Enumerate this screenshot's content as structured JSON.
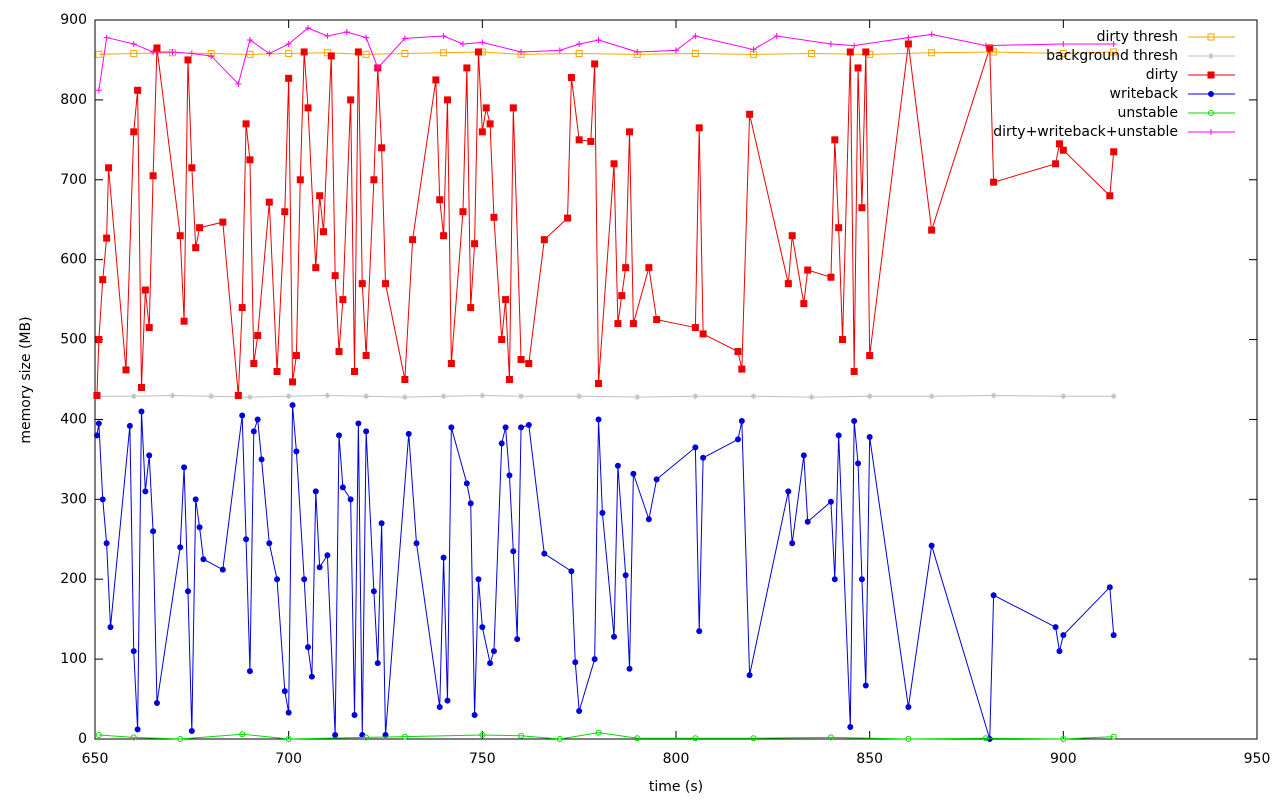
{
  "chart_data": {
    "type": "line",
    "xlabel": "time (s)",
    "ylabel": "memory size (MB)",
    "xlim": [
      650,
      950
    ],
    "xticks": [
      650,
      700,
      750,
      800,
      850,
      900,
      950
    ],
    "ylim": [
      0,
      900
    ],
    "yticks": [
      0,
      100,
      200,
      300,
      400,
      500,
      600,
      700,
      800,
      900
    ],
    "legend": "upper right",
    "series": [
      {
        "name": "dirty thresh",
        "color": "#ffa500",
        "marker": "open-square",
        "x": [
          651,
          660,
          670,
          680,
          690,
          700,
          710,
          720,
          730,
          740,
          750,
          760,
          775,
          790,
          805,
          820,
          835,
          850,
          866,
          882,
          900,
          913
        ],
        "values": [
          857,
          858,
          859,
          858,
          857,
          858,
          859,
          857,
          858,
          859,
          860,
          857,
          858,
          857,
          858,
          857,
          858,
          857,
          859,
          860,
          858,
          860
        ]
      },
      {
        "name": "background thresh",
        "color": "#c0c0c0",
        "marker": "star",
        "x": [
          651,
          660,
          670,
          680,
          690,
          700,
          710,
          720,
          730,
          740,
          750,
          760,
          775,
          790,
          805,
          820,
          835,
          850,
          866,
          882,
          900,
          913
        ],
        "values": [
          429,
          429,
          430,
          429,
          428,
          429,
          430,
          429,
          428,
          429,
          430,
          429,
          429,
          428,
          429,
          429,
          428,
          429,
          429,
          430,
          429,
          429
        ]
      },
      {
        "name": "dirty",
        "color": "#ee0000",
        "marker": "square",
        "x": [
          650.5,
          651,
          652,
          653,
          653.5,
          658,
          660,
          661,
          662,
          663,
          664,
          665,
          666,
          672,
          673,
          674,
          675,
          676,
          677,
          683,
          687,
          688,
          689,
          690,
          691,
          692,
          695,
          697,
          699,
          700,
          701,
          702,
          703,
          704,
          705,
          707,
          708,
          709,
          711,
          712,
          713,
          714,
          716,
          717,
          718,
          719,
          720,
          722,
          723,
          724,
          725,
          730,
          732,
          738,
          739,
          740,
          741,
          742,
          745,
          746,
          747,
          748,
          749,
          750,
          751,
          752,
          753,
          755,
          756,
          757,
          758,
          760,
          762,
          766,
          772,
          773,
          775,
          778,
          779,
          780,
          784,
          785,
          786,
          787,
          788,
          789,
          793,
          795,
          805,
          806,
          807,
          816,
          817,
          819,
          829,
          830,
          833,
          834,
          840,
          841,
          842,
          843,
          845,
          846,
          847,
          848,
          849,
          850,
          860,
          866,
          881,
          882,
          898,
          899,
          900,
          912,
          913
        ],
        "values": [
          430,
          500,
          575,
          627,
          715,
          462,
          760,
          812,
          440,
          562,
          515,
          705,
          865,
          630,
          523,
          850,
          715,
          615,
          640,
          647,
          430,
          540,
          770,
          725,
          470,
          505,
          672,
          460,
          660,
          827,
          447,
          480,
          700,
          860,
          790,
          590,
          680,
          635,
          855,
          580,
          485,
          550,
          800,
          460,
          860,
          570,
          480,
          700,
          840,
          740,
          570,
          450,
          625,
          825,
          675,
          630,
          800,
          470,
          660,
          840,
          540,
          620,
          860,
          760,
          790,
          770,
          653,
          500,
          550,
          450,
          790,
          475,
          470,
          625,
          652,
          828,
          750,
          748,
          845,
          445,
          720,
          520,
          555,
          590,
          760,
          520,
          590,
          525,
          515,
          765,
          507,
          485,
          463,
          782,
          570,
          630,
          545,
          587,
          578,
          750,
          640,
          500,
          860,
          460,
          840,
          665,
          860,
          480,
          870,
          637,
          865,
          697,
          720,
          745,
          737,
          680,
          735
        ]
      },
      {
        "name": "writeback",
        "color": "#0000dd",
        "marker": "circle",
        "x": [
          650.5,
          651,
          652,
          653,
          654,
          659,
          660,
          661,
          662,
          663,
          664,
          665,
          666,
          672,
          673,
          674,
          675,
          676,
          677,
          678,
          683,
          688,
          689,
          690,
          691,
          692,
          693,
          695,
          697,
          699,
          700,
          701,
          702,
          704,
          705,
          706,
          707,
          708,
          710,
          712,
          713,
          714,
          716,
          717,
          718,
          719,
          720,
          722,
          723,
          724,
          725,
          731,
          733,
          739,
          740,
          741,
          742,
          746,
          747,
          748,
          749,
          750,
          752,
          753,
          755,
          756,
          757,
          758,
          759,
          760,
          762,
          766,
          773,
          774,
          775,
          779,
          780,
          781,
          784,
          785,
          787,
          788,
          789,
          793,
          795,
          805,
          806,
          807,
          816,
          817,
          819,
          829,
          830,
          833,
          834,
          840,
          841,
          842,
          845,
          846,
          847,
          848,
          849,
          850,
          860,
          866,
          881,
          882,
          898,
          899,
          900,
          912,
          913
        ],
        "values": [
          380,
          395,
          300,
          245,
          140,
          392,
          110,
          12,
          410,
          310,
          355,
          260,
          45,
          240,
          340,
          185,
          10,
          300,
          265,
          225,
          212,
          405,
          250,
          85,
          385,
          400,
          350,
          245,
          200,
          60,
          33,
          418,
          360,
          200,
          115,
          78,
          310,
          215,
          230,
          5,
          380,
          315,
          300,
          30,
          395,
          5,
          385,
          185,
          95,
          270,
          5,
          382,
          245,
          40,
          227,
          48,
          390,
          320,
          295,
          30,
          200,
          140,
          95,
          110,
          370,
          390,
          330,
          235,
          125,
          390,
          393,
          232,
          210,
          96,
          35,
          100,
          400,
          283,
          128,
          342,
          205,
          88,
          332,
          275,
          325,
          365,
          135,
          352,
          375,
          398,
          80,
          310,
          245,
          355,
          272,
          297,
          200,
          380,
          15,
          398,
          345,
          200,
          67,
          378,
          40,
          242,
          0,
          180,
          140,
          110,
          130,
          190,
          130
        ]
      },
      {
        "name": "unstable",
        "color": "#00dd00",
        "marker": "open-circle",
        "x": [
          651,
          660,
          672,
          688,
          700,
          720,
          730,
          750,
          760,
          770,
          780,
          790,
          805,
          820,
          840,
          860,
          880,
          900,
          913
        ],
        "values": [
          5,
          2,
          0,
          6,
          0,
          2,
          3,
          5,
          4,
          0,
          8,
          1,
          1,
          1,
          2,
          0,
          1,
          0,
          3
        ]
      },
      {
        "name": "dirty+writeback+unstable",
        "color": "#ff00ff",
        "marker": "plus",
        "x": [
          651,
          653,
          660,
          665,
          670,
          675,
          680,
          687,
          690,
          695,
          700,
          705,
          710,
          715,
          720,
          723,
          730,
          740,
          745,
          750,
          760,
          770,
          775,
          780,
          790,
          800,
          805,
          820,
          826,
          840,
          846,
          860,
          866,
          880,
          900,
          913
        ],
        "values": [
          812,
          878,
          870,
          860,
          860,
          858,
          855,
          820,
          875,
          858,
          870,
          890,
          880,
          885,
          878,
          840,
          877,
          880,
          870,
          872,
          860,
          862,
          870,
          875,
          860,
          862,
          880,
          863,
          880,
          870,
          868,
          878,
          882,
          868,
          870,
          870
        ]
      }
    ]
  }
}
